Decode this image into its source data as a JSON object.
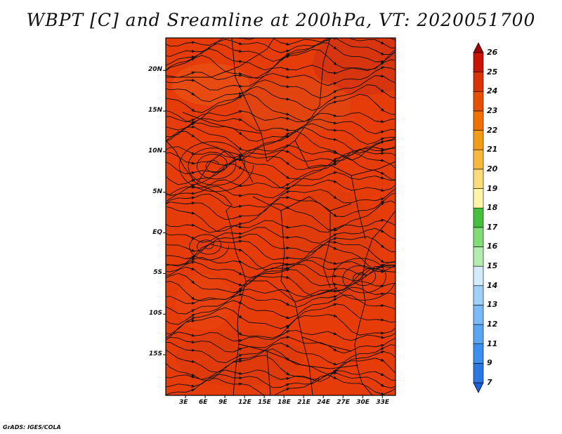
{
  "title": "WBPT [C] and Sreamline at 200hPa, VT: 2020051700",
  "credit": "GrADS: IGES/COLA",
  "map": {
    "lat_range": [
      -20,
      24
    ],
    "lon_range": [
      0,
      35
    ],
    "lat_ticks": [
      {
        "value": 20,
        "label": "20N"
      },
      {
        "value": 15,
        "label": "15N"
      },
      {
        "value": 10,
        "label": "10N"
      },
      {
        "value": 5,
        "label": "5N"
      },
      {
        "value": 0,
        "label": "EQ"
      },
      {
        "value": -5,
        "label": "5S"
      },
      {
        "value": -10,
        "label": "10S"
      },
      {
        "value": -15,
        "label": "15S"
      }
    ],
    "lon_ticks": [
      {
        "value": 3,
        "label": "3E"
      },
      {
        "value": 6,
        "label": "6E"
      },
      {
        "value": 9,
        "label": "9E"
      },
      {
        "value": 12,
        "label": "12E"
      },
      {
        "value": 15,
        "label": "15E"
      },
      {
        "value": 18,
        "label": "18E"
      },
      {
        "value": 21,
        "label": "21E"
      },
      {
        "value": 24,
        "label": "24E"
      },
      {
        "value": 27,
        "label": "27E"
      },
      {
        "value": 30,
        "label": "30E"
      },
      {
        "value": 33,
        "label": "33E"
      }
    ],
    "field_color": "#e63c0a"
  },
  "colorbar": {
    "levels": [
      "7",
      "9",
      "11",
      "12",
      "13",
      "14",
      "15",
      "16",
      "17",
      "18",
      "19",
      "20",
      "21",
      "22",
      "23",
      "24",
      "25",
      "26"
    ],
    "colors": [
      "#1e5fdc",
      "#2a78e6",
      "#3c8ef0",
      "#5aa6f5",
      "#7abaf7",
      "#9fd0fa",
      "#d2ecfc",
      "#b4ecb0",
      "#82dc78",
      "#46c03c",
      "#fff5a8",
      "#fcdc78",
      "#f8b83c",
      "#f49a14",
      "#f07000",
      "#e65000",
      "#dc3200",
      "#c81400",
      "#a00000"
    ]
  }
}
